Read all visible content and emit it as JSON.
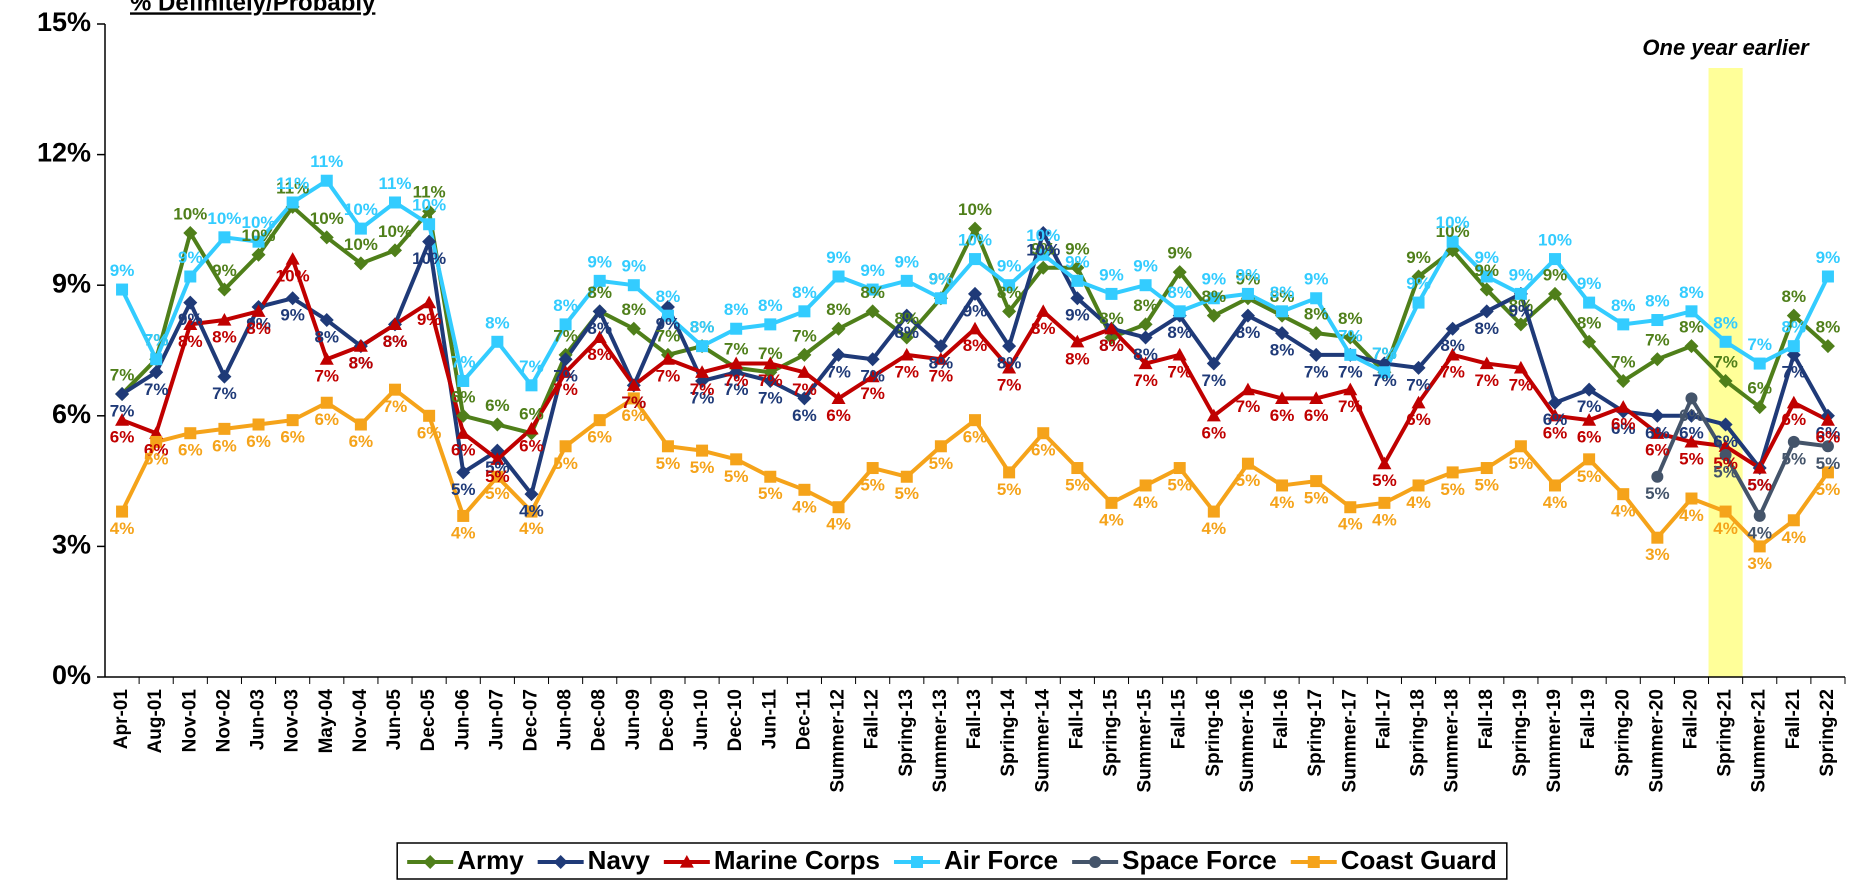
{
  "chart_data": {
    "type": "line",
    "title": "% Definitely/Probably",
    "categories": [
      "Apr-01",
      "Aug-01",
      "Nov-01",
      "Nov-02",
      "Jun-03",
      "Nov-03",
      "May-04",
      "Nov-04",
      "Jun-05",
      "Dec-05",
      "Jun-06",
      "Jun-07",
      "Dec-07",
      "Jun-08",
      "Dec-08",
      "Jun-09",
      "Dec-09",
      "Jun-10",
      "Dec-10",
      "Jun-11",
      "Dec-11",
      "Summer-12",
      "Fall-12",
      "Spring-13",
      "Summer-13",
      "Fall-13",
      "Spring-14",
      "Summer-14",
      "Fall-14",
      "Spring-15",
      "Summer-15",
      "Fall-15",
      "Spring-16",
      "Summer-16",
      "Fall-16",
      "Spring-17",
      "Summer-17",
      "Fall-17",
      "Spring-18",
      "Summer-18",
      "Fall-18",
      "Spring-19",
      "Summer-19",
      "Fall-19",
      "Spring-20",
      "Summer-20",
      "Fall-20",
      "Spring-21",
      "Summer-21",
      "Fall-21",
      "Spring-22"
    ],
    "series": [
      {
        "name": "Army",
        "color": "#4f7f1a",
        "marker": "diamond",
        "values": [
          6.5,
          7.3,
          10.2,
          8.9,
          9.7,
          10.8,
          10.1,
          9.5,
          9.8,
          10.7,
          6.0,
          5.8,
          5.6,
          7.4,
          8.4,
          8.0,
          7.4,
          7.6,
          7.1,
          7.0,
          7.4,
          8.0,
          8.4,
          7.8,
          8.7,
          10.3,
          8.4,
          9.4,
          9.4,
          7.8,
          8.1,
          9.3,
          8.3,
          8.7,
          8.3,
          7.9,
          7.8,
          7.0,
          9.2,
          9.8,
          8.9,
          8.1,
          8.8,
          7.7,
          6.8,
          7.3,
          7.6,
          6.8,
          6.2,
          8.3,
          7.6
        ],
        "value_labels": [
          "7%",
          "7%",
          "10%",
          "9%",
          "10%",
          "11%",
          "10%",
          "10%",
          "10%",
          "11%",
          "6%",
          "6%",
          "6%",
          "7%",
          "8%",
          "8%",
          "7%",
          "8%",
          "7%",
          "7%",
          "7%",
          "8%",
          "8%",
          "8%",
          "9%",
          "10%",
          "8%",
          "9%",
          "9%",
          "8%",
          "8%",
          "9%",
          "8%",
          "9%",
          "8%",
          "8%",
          "8%",
          "7%",
          "9%",
          "10%",
          "9%",
          "8%",
          "9%",
          "8%",
          "7%",
          "7%",
          "8%",
          "7%",
          "6%",
          "8%",
          "8%"
        ]
      },
      {
        "name": "Navy",
        "color": "#1f3a78",
        "marker": "diamond",
        "values": [
          6.5,
          7.0,
          8.6,
          6.9,
          8.5,
          8.7,
          8.2,
          7.6,
          8.1,
          10.0,
          4.7,
          5.2,
          4.2,
          7.3,
          8.4,
          6.7,
          8.5,
          6.8,
          7.0,
          6.8,
          6.4,
          7.4,
          7.3,
          8.3,
          7.6,
          8.8,
          7.6,
          10.2,
          8.7,
          8.0,
          7.8,
          8.3,
          7.2,
          8.3,
          7.9,
          7.4,
          7.4,
          7.2,
          7.1,
          8.0,
          8.4,
          8.8,
          6.3,
          6.6,
          6.1,
          6.0,
          6.0,
          5.8,
          4.8,
          7.4,
          6.0
        ],
        "value_labels": [
          "7%",
          "7%",
          "9%",
          "7%",
          "9%",
          "9%",
          "8%",
          "8%",
          "8%",
          "10%",
          "5%",
          "5%",
          "4%",
          "7%",
          "8%",
          "7%",
          "9%",
          "7%",
          "7%",
          "7%",
          "6%",
          "7%",
          "7%",
          "8%",
          "8%",
          "9%",
          "8%",
          "10%",
          "9%",
          "8%",
          "8%",
          "8%",
          "7%",
          "8%",
          "8%",
          "7%",
          "7%",
          "7%",
          "7%",
          "8%",
          "8%",
          "9%",
          "6%",
          "7%",
          "6%",
          "6%",
          "6%",
          "6%",
          "5%",
          "7%",
          "6%"
        ]
      },
      {
        "name": "Marine Corps",
        "color": "#c00000",
        "marker": "triangle",
        "values": [
          5.9,
          5.6,
          8.1,
          8.2,
          8.4,
          9.6,
          7.3,
          7.6,
          8.1,
          8.6,
          5.6,
          5.0,
          5.7,
          7.0,
          7.8,
          6.7,
          7.3,
          7.0,
          7.2,
          7.2,
          7.0,
          6.4,
          6.9,
          7.4,
          7.3,
          8.0,
          7.1,
          8.4,
          7.7,
          8.0,
          7.2,
          7.4,
          6.0,
          6.6,
          6.4,
          6.4,
          6.6,
          4.9,
          6.3,
          7.4,
          7.2,
          7.1,
          6.0,
          5.9,
          6.2,
          5.6,
          5.4,
          5.3,
          4.8,
          6.3,
          5.9
        ],
        "value_labels": [
          "6%",
          "6%",
          "8%",
          "8%",
          "8%",
          "10%",
          "7%",
          "8%",
          "8%",
          "9%",
          "6%",
          "5%",
          "6%",
          "7%",
          "8%",
          "7%",
          "7%",
          "7%",
          "7%",
          "7%",
          "7%",
          "6%",
          "7%",
          "7%",
          "7%",
          "8%",
          "7%",
          "8%",
          "8%",
          "8%",
          "7%",
          "7%",
          "6%",
          "7%",
          "6%",
          "6%",
          "7%",
          "5%",
          "6%",
          "7%",
          "7%",
          "7%",
          "6%",
          "6%",
          "6%",
          "6%",
          "5%",
          "5%",
          "5%",
          "6%",
          "6%"
        ]
      },
      {
        "name": "Air Force",
        "color": "#33ccff",
        "marker": "square",
        "values": [
          8.9,
          7.3,
          9.2,
          10.1,
          10.0,
          10.9,
          11.4,
          10.3,
          10.9,
          10.4,
          6.8,
          7.7,
          6.7,
          8.1,
          9.1,
          9.0,
          8.3,
          7.6,
          8.0,
          8.1,
          8.4,
          9.2,
          8.9,
          9.1,
          8.7,
          9.6,
          9.0,
          9.7,
          9.1,
          8.8,
          9.0,
          8.4,
          8.7,
          8.8,
          8.4,
          8.7,
          7.4,
          7.0,
          8.6,
          10.0,
          9.2,
          8.8,
          9.6,
          8.6,
          8.1,
          8.2,
          8.4,
          7.7,
          7.2,
          7.6,
          9.2
        ],
        "value_labels": [
          "9%",
          "7%",
          "9%",
          "10%",
          "10%",
          "11%",
          "11%",
          "10%",
          "11%",
          "10%",
          "7%",
          "8%",
          "7%",
          "8%",
          "9%",
          "9%",
          "8%",
          "8%",
          "8%",
          "8%",
          "8%",
          "9%",
          "9%",
          "9%",
          "9%",
          "10%",
          "9%",
          "10%",
          "9%",
          "9%",
          "9%",
          "8%",
          "9%",
          "9%",
          "8%",
          "9%",
          "7%",
          "7%",
          "9%",
          "10%",
          "9%",
          "9%",
          "10%",
          "9%",
          "8%",
          "8%",
          "8%",
          "8%",
          "7%",
          "8%",
          "9%"
        ]
      },
      {
        "name": "Space Force",
        "color": "#44546a",
        "marker": "circle",
        "values": [
          null,
          null,
          null,
          null,
          null,
          null,
          null,
          null,
          null,
          null,
          null,
          null,
          null,
          null,
          null,
          null,
          null,
          null,
          null,
          null,
          null,
          null,
          null,
          null,
          null,
          null,
          null,
          null,
          null,
          null,
          null,
          null,
          null,
          null,
          null,
          null,
          null,
          null,
          null,
          null,
          null,
          null,
          null,
          null,
          null,
          4.6,
          6.4,
          5.1,
          3.7,
          5.4,
          5.3
        ],
        "value_labels": [
          null,
          null,
          null,
          null,
          null,
          null,
          null,
          null,
          null,
          null,
          null,
          null,
          null,
          null,
          null,
          null,
          null,
          null,
          null,
          null,
          null,
          null,
          null,
          null,
          null,
          null,
          null,
          null,
          null,
          null,
          null,
          null,
          null,
          null,
          null,
          null,
          null,
          null,
          null,
          null,
          null,
          null,
          null,
          null,
          null,
          "5%",
          "6%",
          "5%",
          "4%",
          "5%",
          "5%"
        ]
      },
      {
        "name": "Coast Guard",
        "color": "#f5a31a",
        "marker": "square",
        "values": [
          3.8,
          5.4,
          5.6,
          5.7,
          5.8,
          5.9,
          6.3,
          5.8,
          6.6,
          6.0,
          3.7,
          4.6,
          3.8,
          5.3,
          5.9,
          6.4,
          5.3,
          5.2,
          5.0,
          4.6,
          4.3,
          3.9,
          4.8,
          4.6,
          5.3,
          5.9,
          4.7,
          5.6,
          4.8,
          4.0,
          4.4,
          4.8,
          3.8,
          4.9,
          4.4,
          4.5,
          3.9,
          4.0,
          4.4,
          4.7,
          4.8,
          5.3,
          4.4,
          5.0,
          4.2,
          3.2,
          4.1,
          3.8,
          3.0,
          3.6,
          4.7
        ],
        "value_labels": [
          "4%",
          "5%",
          "6%",
          "6%",
          "6%",
          "6%",
          "6%",
          "6%",
          "7%",
          "6%",
          "4%",
          "5%",
          "4%",
          "5%",
          "6%",
          "6%",
          "5%",
          "5%",
          "5%",
          "5%",
          "4%",
          "4%",
          "5%",
          "5%",
          "5%",
          "6%",
          "5%",
          "6%",
          "5%",
          "4%",
          "4%",
          "5%",
          "4%",
          "5%",
          "4%",
          "5%",
          "4%",
          "4%",
          "4%",
          "5%",
          "5%",
          "5%",
          "4%",
          "5%",
          "4%",
          "3%",
          "4%",
          "4%",
          "3%",
          "4%",
          "5%"
        ]
      }
    ],
    "ylim": [
      0,
      15
    ],
    "yticks": [
      {
        "value": 0,
        "label": "0%"
      },
      {
        "value": 3,
        "label": "3%"
      },
      {
        "value": 6,
        "label": "6%"
      },
      {
        "value": 9,
        "label": "9%"
      },
      {
        "value": 12,
        "label": "12%"
      },
      {
        "value": 15,
        "label": "15%"
      }
    ],
    "grid": false,
    "legend": "bottom",
    "highlight": {
      "label": "One year earlier",
      "category": "Spring-21",
      "color": "#ffff99"
    }
  }
}
